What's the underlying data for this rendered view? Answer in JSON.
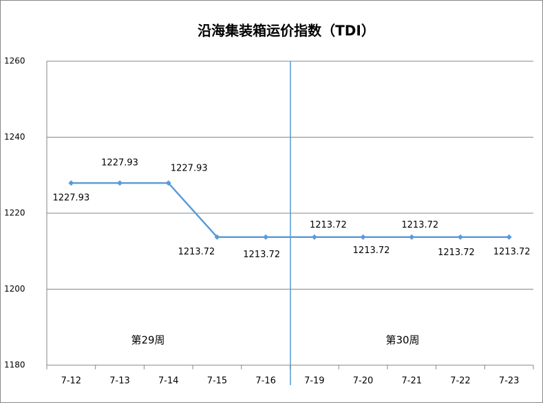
{
  "chart_data": {
    "type": "line",
    "title": "沿海集装箱运价指数（TDI）",
    "categories": [
      "7-12",
      "7-13",
      "7-14",
      "7-15",
      "7-16",
      "7-19",
      "7-20",
      "7-21",
      "7-22",
      "7-23"
    ],
    "series": [
      {
        "name": "TDI",
        "color": "#5b9bd5",
        "values": [
          1227.93,
          1227.93,
          1227.93,
          1213.72,
          1213.72,
          1213.72,
          1213.72,
          1213.72,
          1213.72,
          1213.72
        ]
      }
    ],
    "ylim": [
      1180,
      1260
    ],
    "yticks": [
      1180,
      1200,
      1220,
      1240,
      1260
    ],
    "grid": true,
    "annotations": [
      "第29周",
      "第30周"
    ]
  }
}
